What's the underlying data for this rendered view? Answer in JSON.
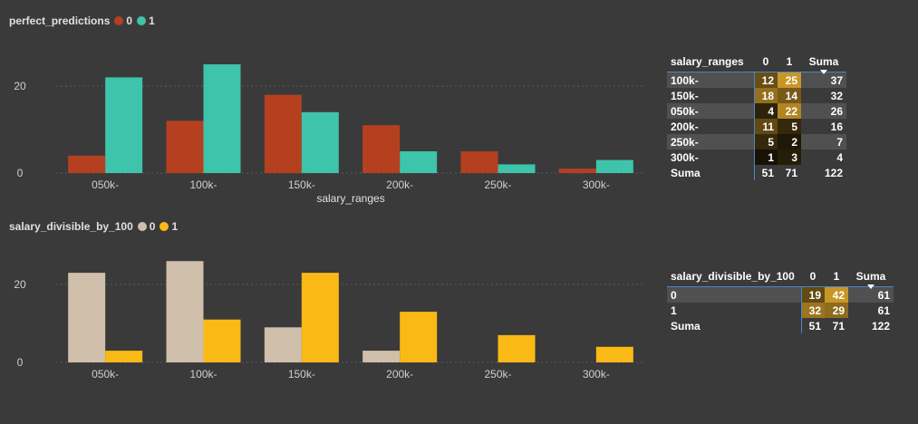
{
  "colors": {
    "c1_series0": "#b5401f",
    "c1_series1": "#3ec4ab",
    "c2_series0": "#cfbfab",
    "c2_series1": "#fbb916",
    "axis_text": "#cfcfcf",
    "gridline": "#5a5a5a"
  },
  "chart_data": [
    {
      "type": "bar",
      "legend_title": "perfect_predictions",
      "xlabel": "salary_ranges",
      "categories": [
        "050k-",
        "100k-",
        "150k-",
        "200k-",
        "250k-",
        "300k-"
      ],
      "series": [
        {
          "name": "0",
          "values": [
            4,
            12,
            18,
            11,
            5,
            1
          ]
        },
        {
          "name": "1",
          "values": [
            22,
            25,
            14,
            5,
            2,
            3
          ]
        }
      ],
      "yticks": [
        "0",
        "20"
      ],
      "ylim": [
        0,
        27
      ]
    },
    {
      "type": "bar",
      "legend_title": "salary_divisible_by_100",
      "xlabel": "",
      "categories": [
        "050k-",
        "100k-",
        "150k-",
        "200k-",
        "250k-",
        "300k-"
      ],
      "series": [
        {
          "name": "0",
          "values": [
            23,
            26,
            9,
            3,
            0,
            0
          ]
        },
        {
          "name": "1",
          "values": [
            3,
            11,
            23,
            13,
            7,
            4
          ]
        }
      ],
      "yticks": [
        "0",
        "20"
      ],
      "ylim": [
        0,
        27
      ]
    },
    {
      "type": "table",
      "row_header": "salary_ranges",
      "columns": [
        "0",
        "1"
      ],
      "total_label": "Suma",
      "rows": [
        {
          "label": "100k-",
          "values": [
            12,
            25
          ],
          "total": 37
        },
        {
          "label": "150k-",
          "values": [
            18,
            14
          ],
          "total": 32
        },
        {
          "label": "050k-",
          "values": [
            4,
            22
          ],
          "total": 26
        },
        {
          "label": "200k-",
          "values": [
            11,
            5
          ],
          "total": 16
        },
        {
          "label": "250k-",
          "values": [
            5,
            2
          ],
          "total": 7
        },
        {
          "label": "300k-",
          "values": [
            1,
            3
          ],
          "total": 4
        }
      ],
      "column_totals": [
        51,
        71
      ],
      "grand_total": 122,
      "value_max": 25
    },
    {
      "type": "table",
      "row_header": "salary_divisible_by_100",
      "columns": [
        "0",
        "1"
      ],
      "total_label": "Suma",
      "rows": [
        {
          "label": "0",
          "values": [
            19,
            42
          ],
          "total": 61
        },
        {
          "label": "1",
          "values": [
            32,
            29
          ],
          "total": 61
        }
      ],
      "column_totals": [
        51,
        71
      ],
      "grand_total": 122,
      "value_max": 42
    }
  ]
}
